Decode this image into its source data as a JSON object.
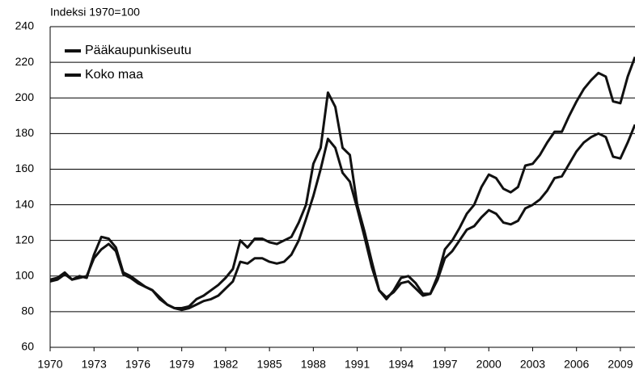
{
  "chart_data": {
    "type": "line",
    "y_label": "Indeksi 1970=100",
    "x": [
      1970,
      1970.5,
      1971,
      1971.5,
      1972,
      1972.5,
      1973,
      1973.5,
      1974,
      1974.5,
      1975,
      1975.5,
      1976,
      1976.5,
      1977,
      1977.5,
      1978,
      1978.5,
      1979,
      1979.5,
      1980,
      1980.5,
      1981,
      1981.5,
      1982,
      1982.5,
      1983,
      1983.5,
      1984,
      1984.5,
      1985,
      1985.5,
      1986,
      1986.5,
      1987,
      1987.5,
      1988,
      1988.5,
      1989,
      1989.5,
      1990,
      1990.5,
      1991,
      1991.5,
      1992,
      1992.5,
      1993,
      1993.5,
      1994,
      1994.5,
      1995,
      1995.5,
      1996,
      1996.5,
      1997,
      1997.5,
      1998,
      1998.5,
      1999,
      1999.5,
      2000,
      2000.5,
      2001,
      2001.5,
      2002,
      2002.5,
      2003,
      2003.5,
      2004,
      2004.5,
      2005,
      2005.5,
      2006,
      2006.5,
      2007,
      2007.5,
      2008,
      2008.5,
      2009,
      2009.5,
      2010
    ],
    "series": [
      {
        "name": "Pääkaupunkiseutu",
        "color": "#111111",
        "values": [
          98,
          99,
          102,
          98,
          100,
          99,
          112,
          122,
          121,
          116,
          102,
          100,
          97,
          94,
          92,
          88,
          84,
          82,
          82,
          83,
          87,
          89,
          92,
          95,
          99,
          104,
          120,
          116,
          121,
          121,
          119,
          118,
          120,
          122,
          130,
          140,
          163,
          172,
          203,
          195,
          172,
          168,
          140,
          125,
          108,
          92,
          87,
          92,
          99,
          100,
          96,
          90,
          90,
          100,
          115,
          120,
          127,
          135,
          140,
          150,
          157,
          155,
          149,
          147,
          150,
          162,
          163,
          168,
          175,
          181,
          181,
          190,
          198,
          205,
          210,
          214,
          212,
          198,
          197,
          212,
          223
        ]
      },
      {
        "name": "Koko maa",
        "color": "#111111",
        "values": [
          97,
          98,
          101,
          98,
          99,
          100,
          110,
          115,
          118,
          114,
          101,
          99,
          96,
          94,
          92,
          87,
          84,
          82,
          81,
          82,
          84,
          86,
          87,
          89,
          93,
          97,
          108,
          107,
          110,
          110,
          108,
          107,
          108,
          112,
          120,
          132,
          145,
          160,
          177,
          172,
          158,
          153,
          138,
          122,
          105,
          92,
          88,
          91,
          96,
          97,
          93,
          89,
          90,
          98,
          110,
          114,
          120,
          126,
          128,
          133,
          137,
          135,
          130,
          129,
          131,
          138,
          140,
          143,
          148,
          155,
          156,
          163,
          170,
          175,
          178,
          180,
          178,
          167,
          166,
          175,
          185
        ]
      }
    ],
    "xlim": [
      1970,
      2010
    ],
    "xticks": [
      1970,
      1973,
      1976,
      1979,
      1982,
      1985,
      1988,
      1991,
      1994,
      1997,
      2000,
      2003,
      2006,
      2009
    ],
    "ylim": [
      60,
      240
    ],
    "yticks": [
      60,
      80,
      100,
      120,
      140,
      160,
      180,
      200,
      220,
      240
    ],
    "grid": true,
    "legend": "upper left"
  }
}
